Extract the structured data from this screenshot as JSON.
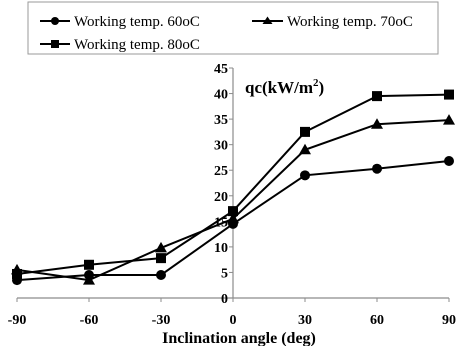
{
  "chart_data": {
    "type": "line",
    "xlabel": "Inclination angle (deg)",
    "ylabel_prefix": "qc(kW/m",
    "ylabel_sup": "2",
    "ylabel_suffix": ")",
    "x": [
      -90,
      -60,
      -30,
      0,
      30,
      60,
      90
    ],
    "xlim": [
      -90,
      90
    ],
    "ylim": [
      0,
      45
    ],
    "xticks": [
      "-90",
      "-60",
      "-30",
      "0",
      "30",
      "60",
      "90"
    ],
    "yticks": [
      "0",
      "5",
      "10",
      "15",
      "20",
      "25",
      "30",
      "35",
      "40",
      "45"
    ],
    "grid": false,
    "legend_position": "top",
    "series": [
      {
        "name": "Working temp. 60oC",
        "marker": "circle",
        "values": [
          3.5,
          4.5,
          4.5,
          14.5,
          24.0,
          25.3,
          26.8
        ]
      },
      {
        "name": "Working temp. 70oC",
        "marker": "triangle",
        "values": [
          5.5,
          3.5,
          9.8,
          15.5,
          29.0,
          34.0,
          34.8
        ]
      },
      {
        "name": "Working temp. 80oC",
        "marker": "square",
        "values": [
          4.7,
          6.5,
          7.8,
          17.0,
          32.5,
          39.5,
          39.8
        ]
      }
    ]
  }
}
